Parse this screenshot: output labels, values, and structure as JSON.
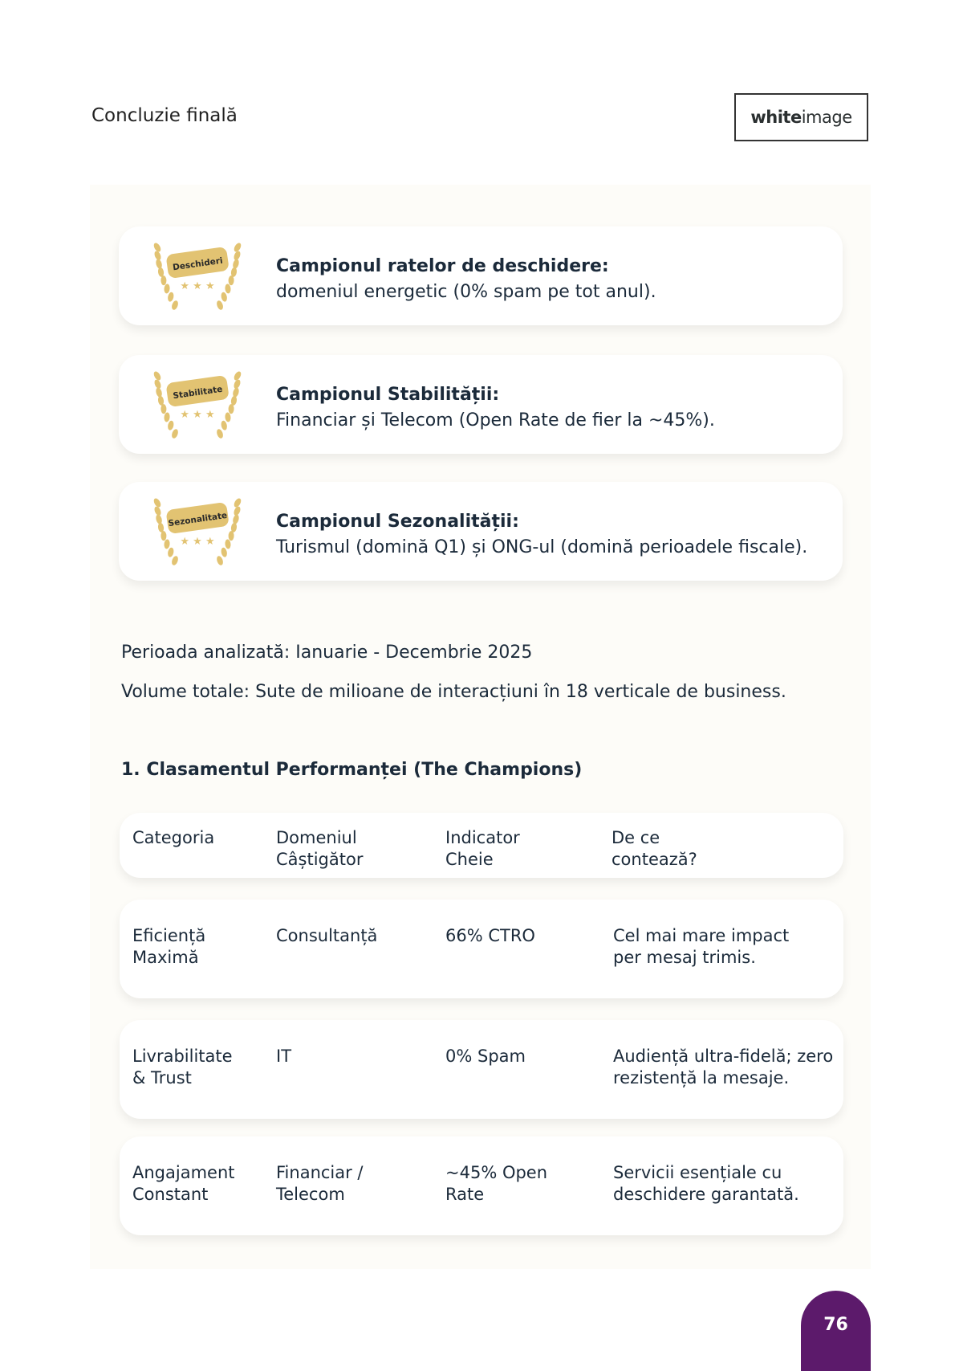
{
  "header": {
    "title": "Concluzie finală",
    "logo_bold": "white",
    "logo_light": "image"
  },
  "cards": [
    {
      "badge": "Deschideri",
      "title": "Campionul ratelor de deschidere:",
      "text": "domeniul energetic (0% spam pe tot anul)."
    },
    {
      "badge": "Stabilitate",
      "title": "Campionul Stabilității:",
      "text": "Financiar și Telecom (Open Rate de fier la ~45%)."
    },
    {
      "badge": "Sezonalitate",
      "title": "Campionul Sezonalității:",
      "text": "Turismul (domină Q1) și ONG-ul (domină perioadele fiscale)."
    }
  ],
  "period": "Perioada analizată: Ianuarie - Decembrie 2025",
  "volume": "Volume totale: Sute de milioane de interacțiuni în 18 verticale de business.",
  "section_heading": "1. Clasamentul Performanței (The Champions)",
  "table": {
    "headers": [
      "Categoria",
      "Domeniul\nCâștigător",
      "Indicator\nCheie",
      "De ce\ncontează?"
    ],
    "rows": [
      [
        "Eficiență\nMaximă",
        "Consultanță",
        "66% CTRO",
        "Cel mai mare impact\nper mesaj trimis."
      ],
      [
        "Livrabilitate\n& Trust",
        "IT",
        "0% Spam",
        "Audiență ultra-fidelă; zero\nrezistență la mesaje."
      ],
      [
        "Angajament\nConstant",
        "Financiar /\nTelecom",
        "~45% Open\nRate",
        "Servicii esențiale cu\ndeschidere garantată."
      ]
    ]
  },
  "page_number": "76",
  "colors": {
    "gold": "#e2c372",
    "accent": "#5c1a6b",
    "text": "#1b2a3a"
  }
}
